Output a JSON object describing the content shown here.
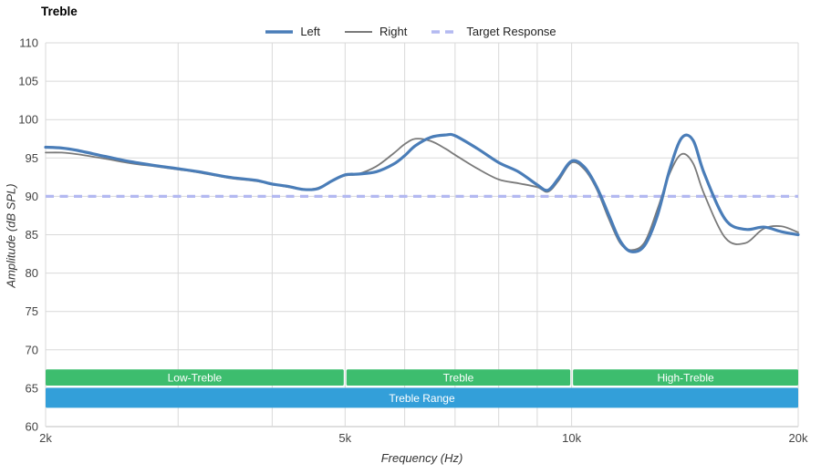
{
  "title": "Treble",
  "legend": [
    {
      "label": "Left",
      "color": "#4a7db8",
      "dash": "",
      "width": 3.5
    },
    {
      "label": "Right",
      "color": "#7a7a7a",
      "dash": "",
      "width": 2
    },
    {
      "label": "Target Response",
      "color": "#b3b9f1",
      "dash": "9 6",
      "width": 3.5
    }
  ],
  "chart_data": {
    "type": "line",
    "title": "Treble",
    "xlabel": "Frequency (Hz)",
    "ylabel": "Amplitude (dB SPL)",
    "x_scale": "log",
    "xlim": [
      2000,
      20000
    ],
    "ylim": [
      60,
      110
    ],
    "grid": true,
    "y_ticks": [
      60,
      65,
      70,
      75,
      80,
      85,
      90,
      95,
      100,
      105,
      110
    ],
    "x_ticks": [
      {
        "value": 2000,
        "label": "2k"
      },
      {
        "value": 5000,
        "label": "5k"
      },
      {
        "value": 10000,
        "label": "10k"
      },
      {
        "value": 20000,
        "label": "20k"
      }
    ],
    "x_gridlines": [
      2000,
      3000,
      4000,
      5000,
      6000,
      7000,
      8000,
      9000,
      10000,
      20000
    ],
    "target": {
      "label": "Target Response",
      "db": 90,
      "color": "#b3b9f1"
    },
    "x": [
      2000,
      2100,
      2200,
      2400,
      2600,
      2800,
      3000,
      3200,
      3500,
      3800,
      4000,
      4200,
      4400,
      4600,
      4800,
      5000,
      5200,
      5500,
      5800,
      6000,
      6200,
      6500,
      6800,
      7000,
      7500,
      8000,
      8500,
      9000,
      9300,
      9600,
      10000,
      10400,
      10800,
      11200,
      11600,
      12000,
      12500,
      13000,
      13500,
      14000,
      14500,
      15000,
      16000,
      17000,
      18000,
      19000,
      20000
    ],
    "series": [
      {
        "name": "Right",
        "color": "#7a7a7a",
        "width": 1.8,
        "values": [
          95.7,
          95.7,
          95.5,
          94.9,
          94.3,
          93.9,
          93.5,
          93.1,
          92.4,
          92.0,
          91.6,
          91.2,
          90.9,
          91.1,
          92.0,
          92.7,
          92.9,
          93.9,
          95.6,
          96.8,
          97.5,
          97.2,
          96.2,
          95.4,
          93.6,
          92.2,
          91.7,
          91.2,
          90.6,
          92.0,
          94.4,
          93.5,
          90.9,
          87.1,
          83.9,
          83.0,
          84.0,
          88.3,
          93.0,
          95.5,
          94.3,
          90.3,
          84.6,
          83.9,
          85.8,
          86.1,
          85.3
        ]
      },
      {
        "name": "Left",
        "color": "#4a7db8",
        "width": 3.2,
        "values": [
          96.4,
          96.3,
          96.0,
          95.2,
          94.5,
          94.0,
          93.6,
          93.2,
          92.5,
          92.1,
          91.6,
          91.3,
          90.9,
          91.0,
          92.0,
          92.8,
          92.9,
          93.2,
          94.2,
          95.3,
          96.6,
          97.7,
          98.0,
          97.9,
          96.2,
          94.4,
          93.2,
          91.5,
          90.8,
          92.3,
          94.6,
          93.8,
          91.2,
          87.6,
          84.2,
          82.8,
          83.6,
          87.5,
          93.5,
          97.6,
          97.3,
          93.0,
          87.0,
          85.7,
          86.0,
          85.4,
          85.0
        ]
      }
    ],
    "band_rows": {
      "top": {
        "color": "#3dbd6e",
        "db_top": 67.45,
        "db_bottom": 65.35
      },
      "bottom": {
        "color": "#339fd9",
        "db_top": 65.05,
        "db_bottom": 62.45
      }
    },
    "bands": [
      {
        "label": "Low-Treble",
        "from": 2000,
        "to": 5000,
        "row": "top"
      },
      {
        "label": "Treble",
        "from": 5000,
        "to": 10000,
        "row": "top"
      },
      {
        "label": "High-Treble",
        "from": 10000,
        "to": 20000,
        "row": "top"
      },
      {
        "label": "Treble Range",
        "from": 2000,
        "to": 20000,
        "row": "bottom"
      }
    ]
  }
}
